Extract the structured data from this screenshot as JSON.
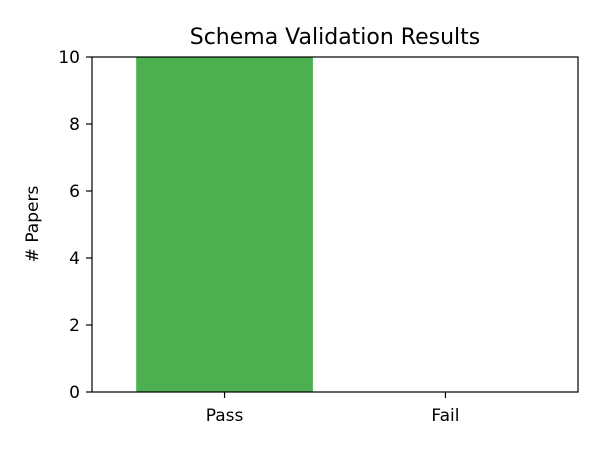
{
  "chart_data": {
    "type": "bar",
    "title": "Schema Validation Results",
    "xlabel": "",
    "ylabel": "# Papers",
    "categories": [
      "Pass",
      "Fail"
    ],
    "values": [
      10,
      0
    ],
    "colors": [
      "#4caf50",
      "#f44336"
    ],
    "ylim": [
      0,
      10
    ],
    "yticks": [
      0,
      2,
      4,
      6,
      8,
      10
    ],
    "grid": false,
    "legend": "none"
  }
}
